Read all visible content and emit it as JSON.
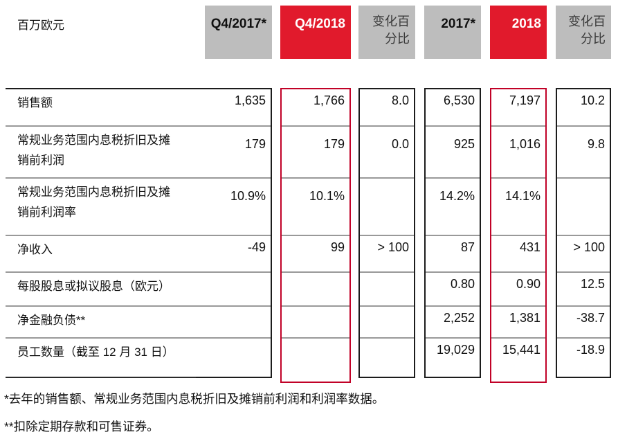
{
  "meta": {
    "unit_label": "百万欧元"
  },
  "header": {
    "columns": [
      {
        "label": "Q4/2017*",
        "style": "gray"
      },
      {
        "label": "Q4/2018",
        "style": "red"
      },
      {
        "label": "变化百\n分比",
        "style": "gray-muted"
      },
      {
        "label": "2017*",
        "style": "gray"
      },
      {
        "label": "2018",
        "style": "red"
      },
      {
        "label": "变化百\n分比",
        "style": "gray-muted"
      }
    ]
  },
  "rows": [
    {
      "label": "销售额",
      "values": [
        "1,635",
        "1,766",
        "8.0",
        "6,530",
        "7,197",
        "10.2"
      ]
    },
    {
      "label": "常规业务范围内息税折旧及摊销前利润",
      "values": [
        "179",
        "179",
        "0.0",
        "925",
        "1,016",
        "9.8"
      ]
    },
    {
      "label": "常规业务范围内息税折旧及摊销前利润率",
      "values": [
        "10.9%",
        "10.1%",
        "",
        "14.2%",
        "14.1%",
        ""
      ]
    },
    {
      "label": "净收入",
      "values": [
        "-49",
        "99",
        "> 100",
        "87",
        "431",
        "> 100"
      ]
    },
    {
      "label": "每股股息或拟议股息（欧元）",
      "values": [
        "",
        "",
        "",
        "0.80",
        "0.90",
        "12.5"
      ]
    },
    {
      "label": "净金融负债**",
      "values": [
        "",
        "",
        "",
        "2,252",
        "1,381",
        "-38.7"
      ]
    },
    {
      "label": "员工数量（截至 12 月 31 日）",
      "values": [
        "",
        "",
        "",
        "19,029",
        "15,441",
        "-18.9"
      ]
    }
  ],
  "footnotes": [
    "*去年的销售额、常规业务范围内息税折旧及摊销前利润和利润率数据。",
    "**扣除定期存款和可售证券。"
  ],
  "colors": {
    "highlight_fill": "#e11a2c",
    "highlight_border": "#c10127",
    "header_gray": "#bdbdbd",
    "separator_gray": "#999999",
    "table_border": "#1c1c1c"
  }
}
